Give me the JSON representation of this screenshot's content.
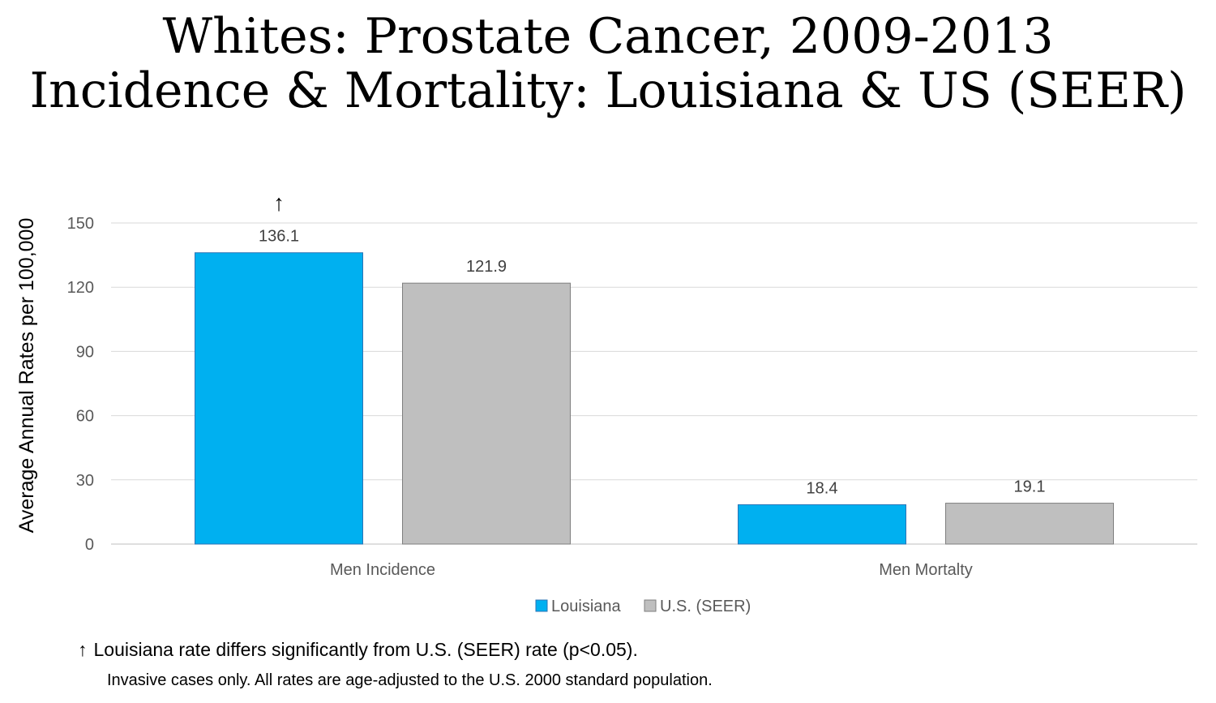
{
  "title": {
    "line1": "Whites: Prostate Cancer, 2009-2013",
    "line2": "Incidence & Mortality: Louisiana & US (SEER)"
  },
  "chart_data": {
    "type": "bar",
    "categories": [
      "Men Incidence",
      "Men Mortalty"
    ],
    "series": [
      {
        "name": "Louisiana",
        "values": [
          136.1,
          18.4
        ],
        "color": "#00B0F0",
        "stroke": "#2E75B6"
      },
      {
        "name": "U.S. (SEER)",
        "values": [
          121.9,
          19.1
        ],
        "color": "#BFBFBF",
        "stroke": "#7F7F7F"
      }
    ],
    "data_labels": [
      [
        "136.1",
        "18.4"
      ],
      [
        "121.9",
        "19.1"
      ]
    ],
    "ylabel": "Average Annual Rates per 100,000",
    "ylim": [
      0,
      150
    ],
    "yticks": [
      0,
      30,
      60,
      90,
      120,
      150
    ],
    "grid": true,
    "legend_position": "bottom",
    "significance": {
      "series": "Louisiana",
      "category": "Men Incidence",
      "marker": "↑"
    }
  },
  "footnotes": {
    "arrow": "↑",
    "significance": "Louisiana rate differs significantly from U.S. (SEER) rate (p<0.05).",
    "method": "Invasive cases only. All rates are age-adjusted to the U.S. 2000 standard population."
  }
}
